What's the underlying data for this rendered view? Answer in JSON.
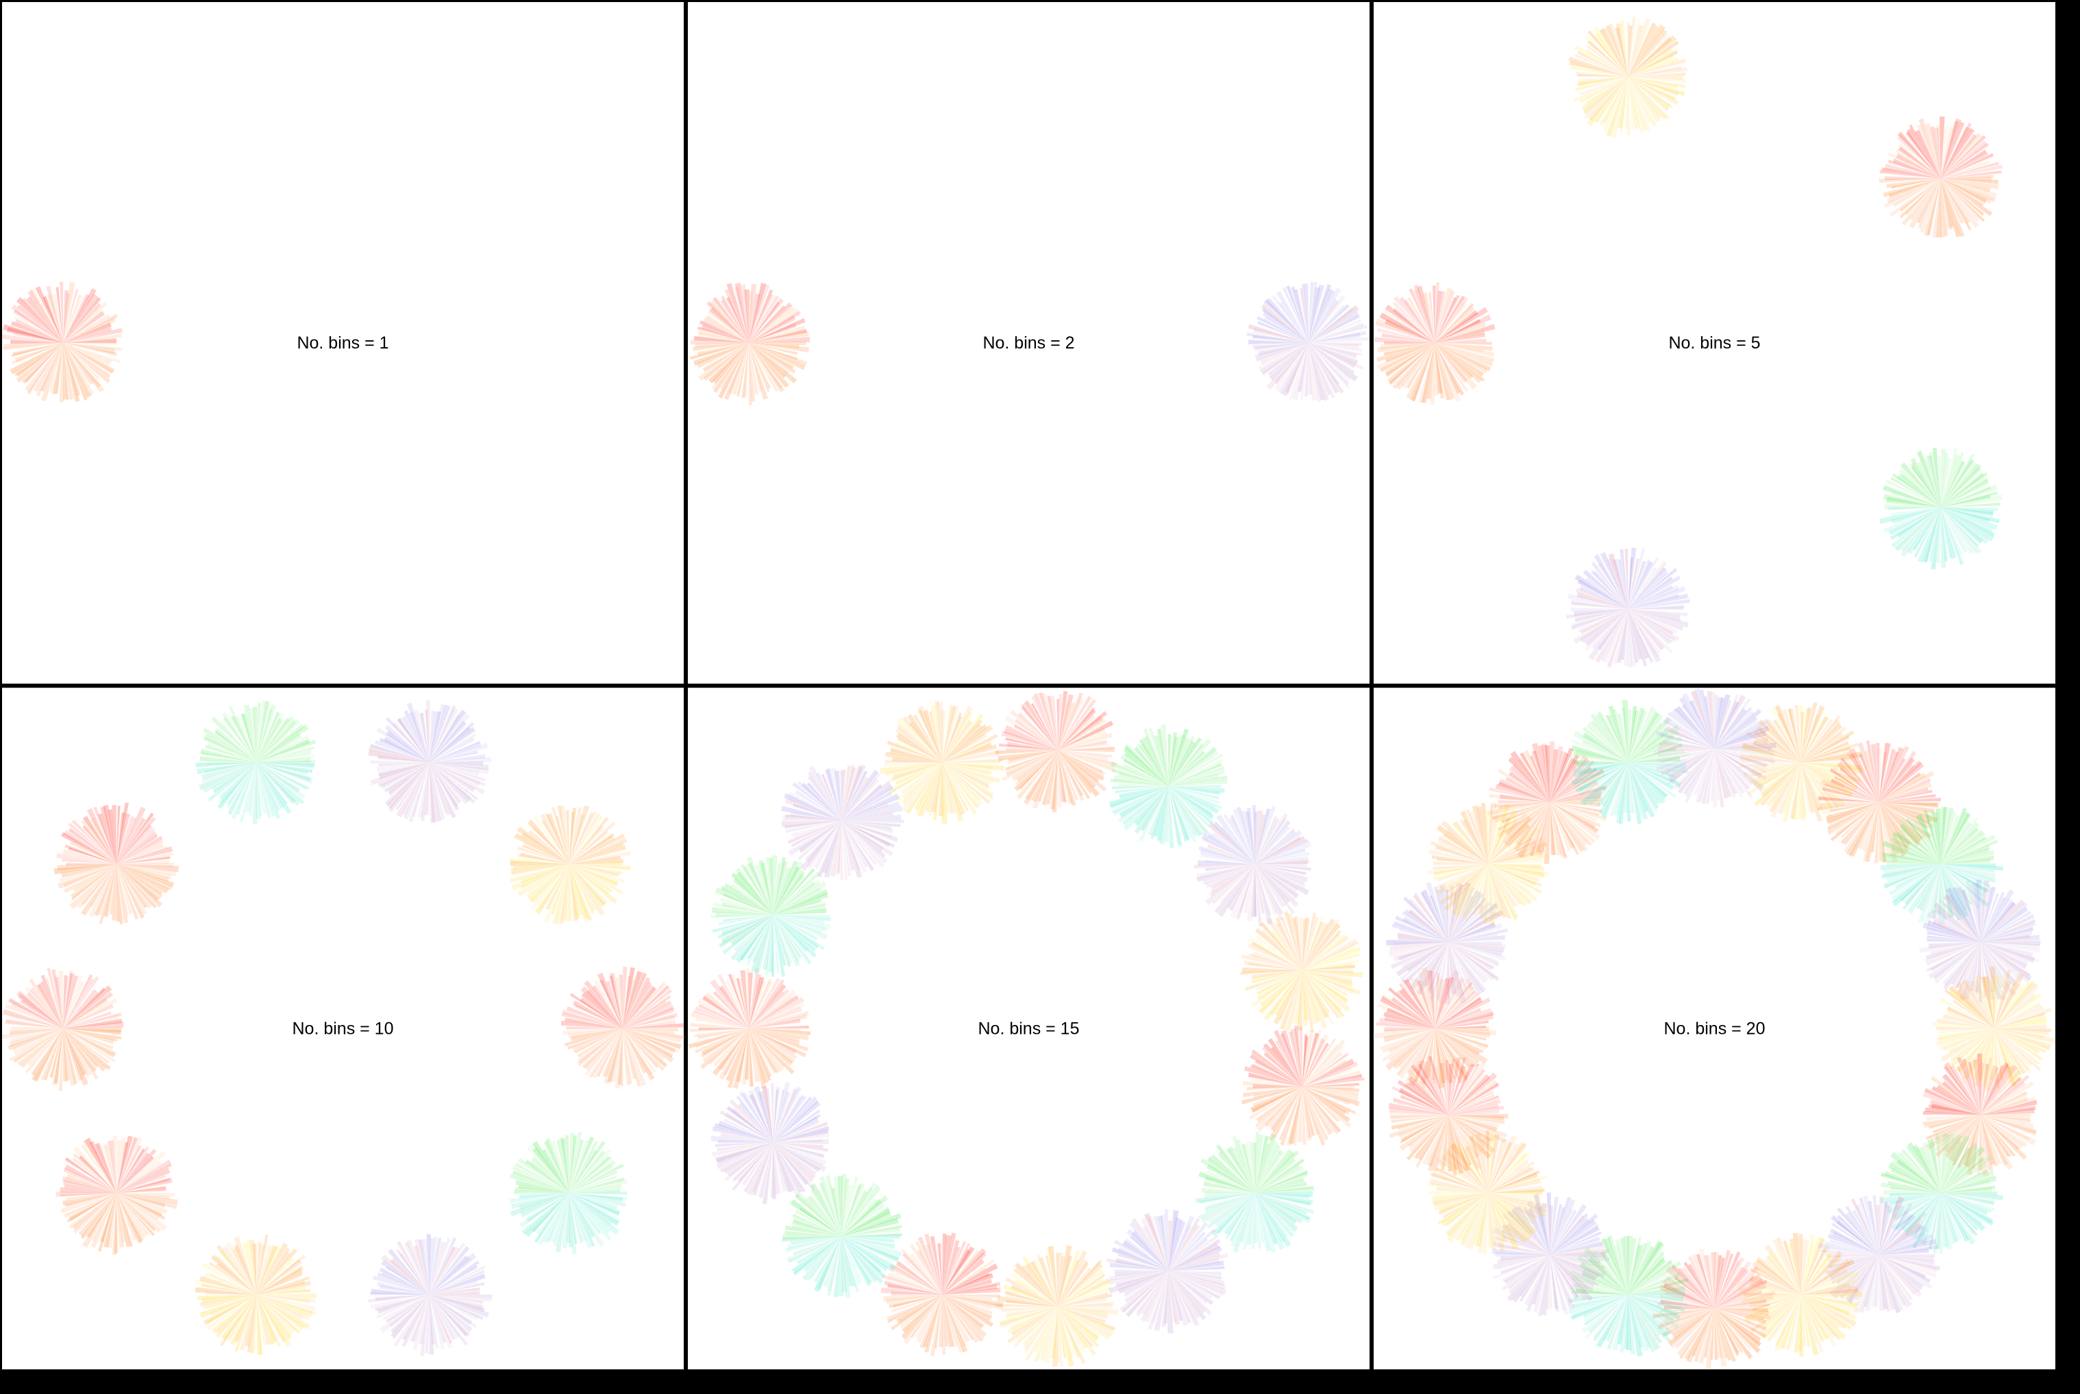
{
  "figure": {
    "background": "#ffffff",
    "border_color": "#000000",
    "panels": [
      {
        "label": "No. bins = 1",
        "bins": 1
      },
      {
        "label": "No. bins = 2",
        "bins": 2
      },
      {
        "label": "No. bins = 5",
        "bins": 5
      },
      {
        "label": "No. bins = 10",
        "bins": 10
      },
      {
        "label": "No. bins = 15",
        "bins": 15
      },
      {
        "label": "No. bins = 20",
        "bins": 20
      }
    ]
  },
  "palettes": {
    "red_orange": [
      "#ff2a1a",
      "#ff7a1a",
      "#ffb070",
      "#ff8a50"
    ],
    "green_cyan": [
      "#44e84a",
      "#3fe8c8",
      "#7af07a",
      "#5fe0b0"
    ],
    "purple_pink": [
      "#9a8ae8",
      "#c09ad0",
      "#d88aa8",
      "#e0a0c0"
    ],
    "yellow_orange": [
      "#ff9a2a",
      "#ffd62a",
      "#ffee40",
      "#ffb84a"
    ]
  },
  "palette_cycle": [
    "red_orange",
    "green_cyan",
    "purple_pink",
    "yellow_orange"
  ]
}
